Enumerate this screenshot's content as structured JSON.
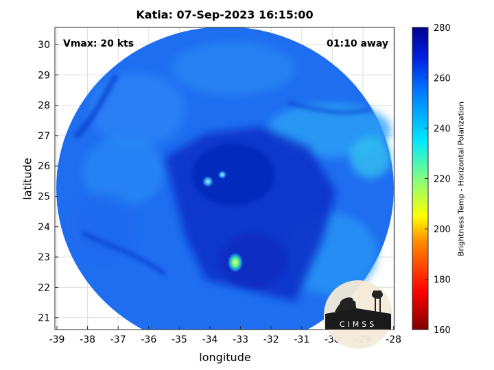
{
  "title": "Katia: 07-Sep-2023 16:15:00",
  "vmax_label": "Vmax: 20 kts",
  "time_label": "01:10 away",
  "xlabel": "longitude",
  "ylabel": "latitude",
  "x_ticks": [
    "-39",
    "-38",
    "-37",
    "-36",
    "-35",
    "-34",
    "-33",
    "-32",
    "-31",
    "-30",
    "-29",
    "-28"
  ],
  "y_ticks": [
    "30",
    "29",
    "28",
    "27",
    "26",
    "25",
    "24",
    "23",
    "22",
    "21"
  ],
  "colorbar": {
    "label": "Brightness Temp - Horizontal Polarization",
    "ticks": [
      "280",
      "260",
      "240",
      "220",
      "200",
      "180",
      "160"
    ],
    "range": [
      160,
      280
    ]
  },
  "logo_text": "CIMSS",
  "colors": {
    "deep_blue": "#0a2fc8",
    "mid_blue": "#1a66f0",
    "light_blue": "#2aa8f5",
    "cyan": "#30d8f0"
  }
}
